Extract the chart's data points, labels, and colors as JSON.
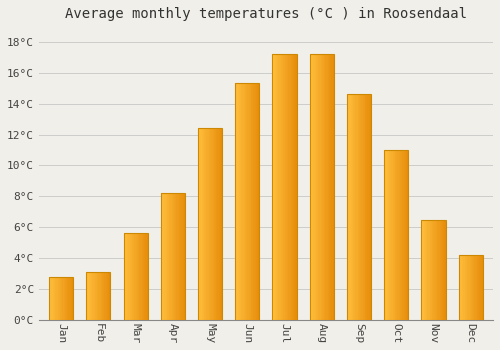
{
  "title": "Average monthly temperatures (°C ) in Roosendaal",
  "months": [
    "Jan",
    "Feb",
    "Mar",
    "Apr",
    "May",
    "Jun",
    "Jul",
    "Aug",
    "Sep",
    "Oct",
    "Nov",
    "Dec"
  ],
  "temperatures": [
    2.8,
    3.1,
    5.6,
    8.2,
    12.4,
    15.3,
    17.2,
    17.2,
    14.6,
    11.0,
    6.5,
    4.2
  ],
  "bar_color_main": "#F5A623",
  "bar_color_left": "#FFD060",
  "bar_color_right": "#E8920A",
  "ylim": [
    0,
    19
  ],
  "yticks": [
    0,
    2,
    4,
    6,
    8,
    10,
    12,
    14,
    16,
    18
  ],
  "background_color": "#F0EFE9",
  "grid_color": "#CCCCCC",
  "title_fontsize": 10,
  "tick_fontsize": 8,
  "bar_width": 0.65
}
